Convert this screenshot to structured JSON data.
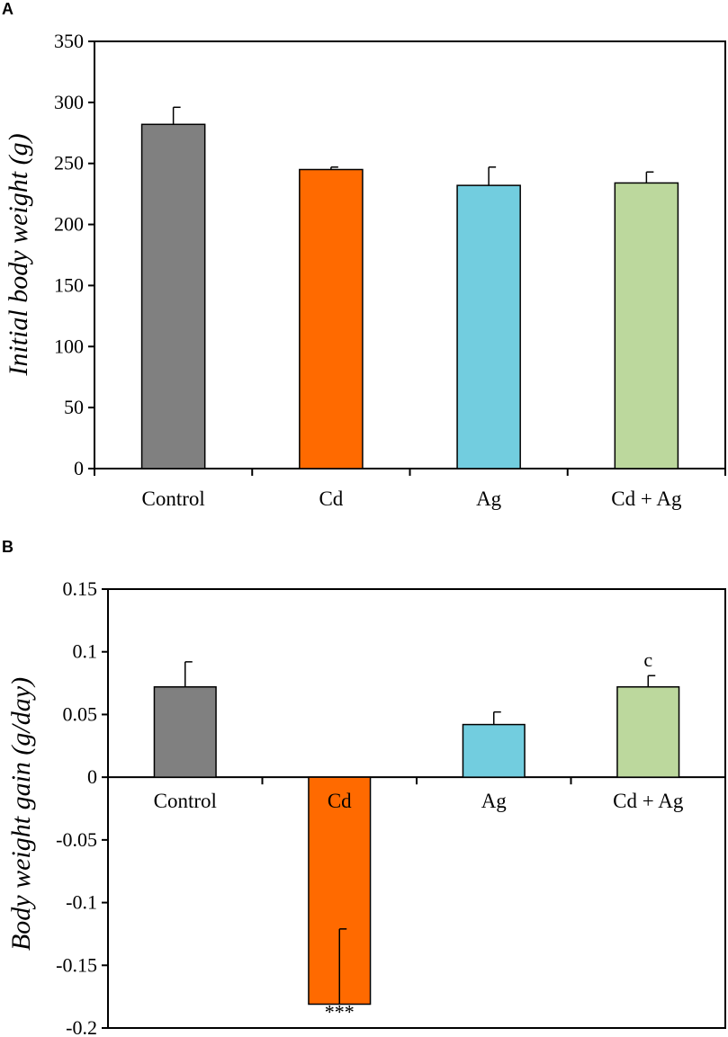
{
  "chart_data": [
    {
      "panel": "A",
      "type": "bar",
      "title": "",
      "xlabel": "",
      "ylabel": "Initial body weight (g)",
      "ylim": [
        0,
        350
      ],
      "yticks": [
        0,
        50,
        100,
        150,
        200,
        250,
        300,
        350
      ],
      "ytick_labels": [
        "0",
        "50",
        "100",
        "150",
        "200",
        "250",
        "300",
        "350"
      ],
      "categories": [
        "Control",
        "Cd",
        "Ag",
        "Cd + Ag"
      ],
      "values": [
        282,
        245,
        232,
        234
      ],
      "errors": [
        14,
        2,
        15,
        9
      ],
      "colors": [
        "#808080",
        "#FF6A00",
        "#72CDDF",
        "#BCD89D"
      ],
      "annotations": [
        "",
        "",
        "",
        ""
      ]
    },
    {
      "panel": "B",
      "type": "bar",
      "title": "",
      "xlabel": "",
      "ylabel": "Body weight gain (g/day)",
      "ylim": [
        -0.2,
        0.15
      ],
      "yticks": [
        -0.2,
        -0.15,
        -0.1,
        -0.05,
        0,
        0.05,
        0.1,
        0.15
      ],
      "ytick_labels": [
        "-0.2",
        "-0.15",
        "-0.1",
        "-0.05",
        "0",
        "0.05",
        "0.1",
        "0.15"
      ],
      "categories": [
        "Control",
        "Cd",
        "Ag",
        "Cd + Ag"
      ],
      "values": [
        0.072,
        -0.181,
        0.042,
        0.072
      ],
      "errors": [
        0.02,
        0.06,
        0.01,
        0.009
      ],
      "colors": [
        "#808080",
        "#FF6A00",
        "#72CDDF",
        "#BCD89D"
      ],
      "annotations": [
        "",
        "***",
        "",
        "c"
      ]
    }
  ]
}
